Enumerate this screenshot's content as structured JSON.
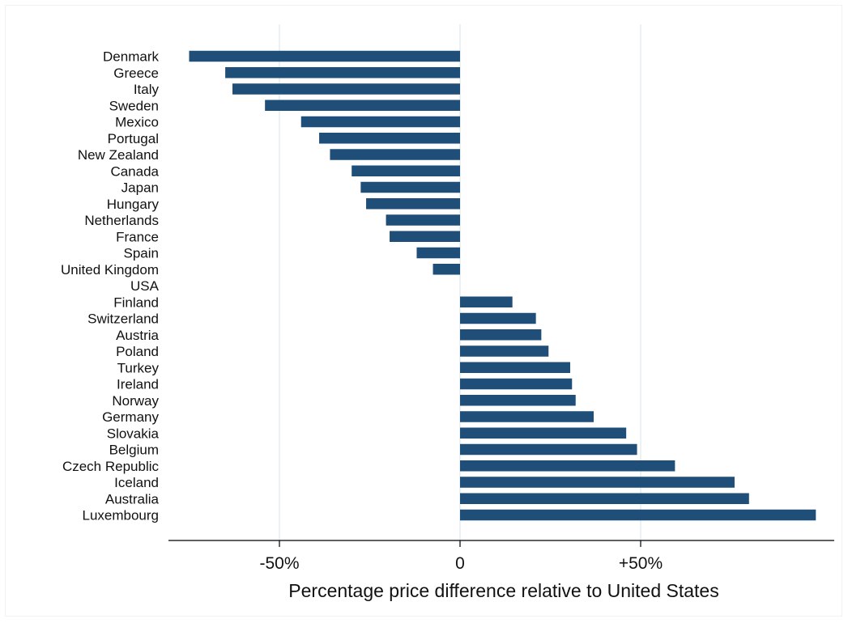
{
  "chart_data": {
    "type": "bar",
    "orientation": "horizontal",
    "title": "",
    "xlabel": "Percentage price difference relative to United States",
    "ylabel": "",
    "xlim": [
      -81,
      104
    ],
    "xticks": [
      {
        "value": -50,
        "label": "-50%"
      },
      {
        "value": 0,
        "label": "0"
      },
      {
        "value": 50,
        "label": "+50%"
      }
    ],
    "grid": "vertical",
    "legend": "none",
    "bar_color": "#1f4e79",
    "grid_color": "#e3eef2",
    "categories": [
      "Denmark",
      "Greece",
      "Italy",
      "Sweden",
      "Mexico",
      "Portugal",
      "New Zealand",
      "Canada",
      "Japan",
      "Hungary",
      "Netherlands",
      "France",
      "Spain",
      "United Kingdom",
      "USA",
      "Finland",
      "Switzerland",
      "Austria",
      "Poland",
      "Turkey",
      "Ireland",
      "Norway",
      "Germany",
      "Slovakia",
      "Belgium",
      "Czech Republic",
      "Iceland",
      "Australia",
      "Luxembourg"
    ],
    "values": [
      -75,
      -65,
      -63,
      -54,
      -44,
      -39,
      -36,
      -30,
      -27.5,
      -26,
      -20.5,
      -19.5,
      -12,
      -7.5,
      0,
      14.5,
      21,
      22.5,
      24.5,
      30.5,
      31,
      32,
      37,
      46,
      49,
      59.5,
      76,
      80,
      98.5
    ]
  }
}
